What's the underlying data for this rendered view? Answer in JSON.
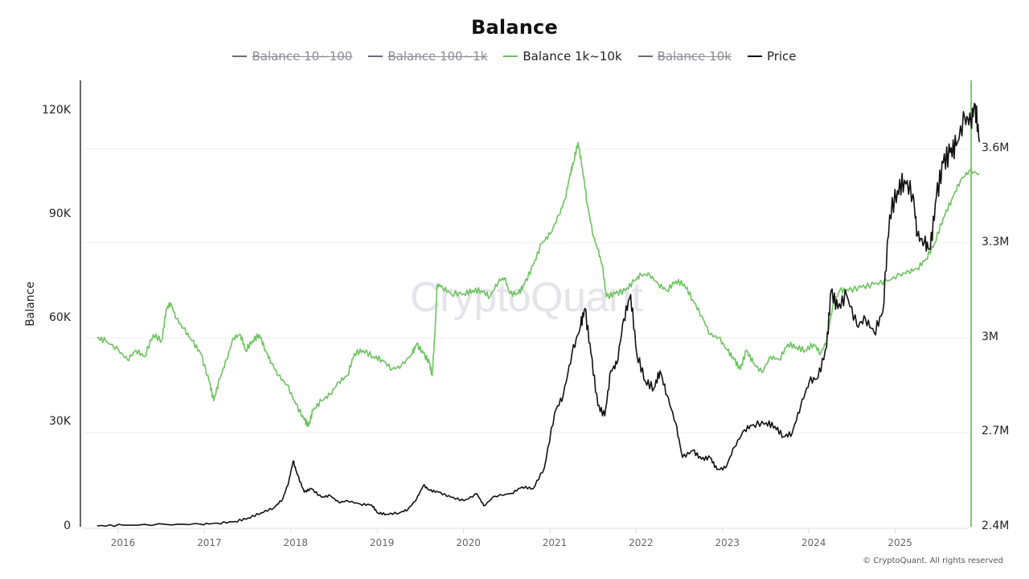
{
  "header": {
    "title": "Balance"
  },
  "legend": [
    {
      "label": "Balance 10~100",
      "color": "#6b6b78",
      "hidden": true
    },
    {
      "label": "Balance 100~1k",
      "color": "#6b6b78",
      "hidden": true
    },
    {
      "label": "Balance 1k~10k",
      "color": "#6cc35e",
      "hidden": false
    },
    {
      "label": "Balance 10k",
      "color": "#6b6b78",
      "hidden": true
    },
    {
      "label": "Price",
      "color": "#111111",
      "hidden": false
    }
  ],
  "axes": {
    "left_label": "Balance",
    "left_ticks": [
      "120K",
      "90K",
      "60K",
      "30K",
      "0"
    ],
    "right_ticks": [
      "3.6M",
      "3.3M",
      "3M",
      "2.7M",
      "2.4M"
    ],
    "x_ticks": [
      "2016",
      "2017",
      "2018",
      "2019",
      "2020",
      "2021",
      "2022",
      "2023",
      "2024",
      "2025"
    ]
  },
  "watermark": "CryptoQuant",
  "copyright": "© CryptoQuant. All rights reserved",
  "colors": {
    "balance_1k_10k": "#6cc35e",
    "price": "#111111",
    "right_axis": "#7dcf6e",
    "grid": "#eeeeee"
  },
  "chart_data": {
    "type": "line",
    "title": "Balance",
    "xlabel": "",
    "ylabel": "Balance",
    "x_range": [
      "2015-09",
      "2025-08"
    ],
    "legend_position": "top",
    "grid": true,
    "left_axis": {
      "series": "Price",
      "range": [
        0,
        130000
      ],
      "ticks": [
        0,
        30000,
        60000,
        90000,
        120000
      ]
    },
    "right_axis": {
      "series": "Balance 1k~10k",
      "range": [
        2400000,
        3620000
      ],
      "ticks": [
        2400000,
        2700000,
        3000000,
        3300000,
        3600000
      ]
    },
    "series": [
      {
        "name": "Balance 1k~10k",
        "axis": "right",
        "color": "#6cc35e",
        "points": [
          [
            2015.7,
            3000000
          ],
          [
            2015.8,
            2990000
          ],
          [
            2015.95,
            2960000
          ],
          [
            2016.05,
            2930000
          ],
          [
            2016.15,
            2960000
          ],
          [
            2016.25,
            2940000
          ],
          [
            2016.35,
            3010000
          ],
          [
            2016.45,
            2990000
          ],
          [
            2016.5,
            3090000
          ],
          [
            2016.55,
            3110000
          ],
          [
            2016.62,
            3060000
          ],
          [
            2016.7,
            3030000
          ],
          [
            2016.8,
            2990000
          ],
          [
            2016.9,
            2950000
          ],
          [
            2017.0,
            2860000
          ],
          [
            2017.05,
            2800000
          ],
          [
            2017.12,
            2870000
          ],
          [
            2017.2,
            2930000
          ],
          [
            2017.28,
            3000000
          ],
          [
            2017.36,
            3010000
          ],
          [
            2017.42,
            2960000
          ],
          [
            2017.5,
            2990000
          ],
          [
            2017.58,
            3010000
          ],
          [
            2017.65,
            2960000
          ],
          [
            2017.72,
            2920000
          ],
          [
            2017.8,
            2880000
          ],
          [
            2017.9,
            2850000
          ],
          [
            2018.0,
            2790000
          ],
          [
            2018.1,
            2740000
          ],
          [
            2018.15,
            2720000
          ],
          [
            2018.2,
            2770000
          ],
          [
            2018.3,
            2800000
          ],
          [
            2018.4,
            2820000
          ],
          [
            2018.5,
            2860000
          ],
          [
            2018.6,
            2880000
          ],
          [
            2018.68,
            2950000
          ],
          [
            2018.78,
            2960000
          ],
          [
            2018.9,
            2940000
          ],
          [
            2019.0,
            2930000
          ],
          [
            2019.12,
            2900000
          ],
          [
            2019.22,
            2910000
          ],
          [
            2019.35,
            2950000
          ],
          [
            2019.4,
            2980000
          ],
          [
            2019.48,
            2950000
          ],
          [
            2019.55,
            2920000
          ],
          [
            2019.58,
            2880000
          ],
          [
            2019.61,
            3000000
          ],
          [
            2019.64,
            3170000
          ],
          [
            2019.7,
            3160000
          ],
          [
            2019.8,
            3140000
          ],
          [
            2019.95,
            3140000
          ],
          [
            2020.05,
            3150000
          ],
          [
            2020.15,
            3150000
          ],
          [
            2020.25,
            3130000
          ],
          [
            2020.35,
            3180000
          ],
          [
            2020.42,
            3190000
          ],
          [
            2020.48,
            3140000
          ],
          [
            2020.58,
            3140000
          ],
          [
            2020.65,
            3170000
          ],
          [
            2020.75,
            3230000
          ],
          [
            2020.85,
            3300000
          ],
          [
            2020.95,
            3330000
          ],
          [
            2021.05,
            3390000
          ],
          [
            2021.12,
            3440000
          ],
          [
            2021.18,
            3520000
          ],
          [
            2021.22,
            3560000
          ],
          [
            2021.27,
            3620000
          ],
          [
            2021.32,
            3540000
          ],
          [
            2021.38,
            3420000
          ],
          [
            2021.45,
            3320000
          ],
          [
            2021.5,
            3280000
          ],
          [
            2021.55,
            3230000
          ],
          [
            2021.6,
            3130000
          ],
          [
            2021.7,
            3140000
          ],
          [
            2021.82,
            3150000
          ],
          [
            2021.92,
            3180000
          ],
          [
            2022.0,
            3200000
          ],
          [
            2022.1,
            3200000
          ],
          [
            2022.2,
            3170000
          ],
          [
            2022.3,
            3150000
          ],
          [
            2022.4,
            3180000
          ],
          [
            2022.5,
            3170000
          ],
          [
            2022.6,
            3120000
          ],
          [
            2022.7,
            3070000
          ],
          [
            2022.8,
            3010000
          ],
          [
            2022.9,
            3000000
          ],
          [
            2023.0,
            2960000
          ],
          [
            2023.08,
            2930000
          ],
          [
            2023.15,
            2900000
          ],
          [
            2023.22,
            2960000
          ],
          [
            2023.3,
            2920000
          ],
          [
            2023.4,
            2890000
          ],
          [
            2023.5,
            2940000
          ],
          [
            2023.6,
            2930000
          ],
          [
            2023.7,
            2980000
          ],
          [
            2023.8,
            2970000
          ],
          [
            2023.9,
            2960000
          ],
          [
            2024.0,
            2980000
          ],
          [
            2024.08,
            2950000
          ],
          [
            2024.15,
            2990000
          ],
          [
            2024.22,
            3100000
          ],
          [
            2024.3,
            3150000
          ],
          [
            2024.4,
            3150000
          ],
          [
            2024.55,
            3160000
          ],
          [
            2024.7,
            3170000
          ],
          [
            2024.85,
            3180000
          ],
          [
            2025.0,
            3200000
          ],
          [
            2025.1,
            3210000
          ],
          [
            2025.2,
            3220000
          ],
          [
            2025.3,
            3250000
          ],
          [
            2025.4,
            3300000
          ],
          [
            2025.5,
            3380000
          ],
          [
            2025.6,
            3440000
          ],
          [
            2025.7,
            3500000
          ],
          [
            2025.8,
            3530000
          ],
          [
            2025.92,
            3520000
          ]
        ]
      },
      {
        "name": "Price",
        "axis": "left",
        "color": "#111111",
        "points": [
          [
            2015.7,
            240
          ],
          [
            2016.0,
            430
          ],
          [
            2016.5,
            650
          ],
          [
            2016.9,
            750
          ],
          [
            2017.1,
            1000
          ],
          [
            2017.3,
            1500
          ],
          [
            2017.45,
            2500
          ],
          [
            2017.6,
            4000
          ],
          [
            2017.75,
            5500
          ],
          [
            2017.85,
            8000
          ],
          [
            2017.92,
            13000
          ],
          [
            2017.97,
            19000
          ],
          [
            2018.02,
            15000
          ],
          [
            2018.1,
            10000
          ],
          [
            2018.18,
            11000
          ],
          [
            2018.3,
            8500
          ],
          [
            2018.4,
            9000
          ],
          [
            2018.5,
            7000
          ],
          [
            2018.6,
            7500
          ],
          [
            2018.75,
            6500
          ],
          [
            2018.88,
            6300
          ],
          [
            2018.95,
            4000
          ],
          [
            2019.05,
            3600
          ],
          [
            2019.2,
            4000
          ],
          [
            2019.3,
            5000
          ],
          [
            2019.4,
            8000
          ],
          [
            2019.48,
            12000
          ],
          [
            2019.55,
            10500
          ],
          [
            2019.65,
            10000
          ],
          [
            2019.8,
            8500
          ],
          [
            2019.95,
            7500
          ],
          [
            2020.1,
            9500
          ],
          [
            2020.18,
            6000
          ],
          [
            2020.3,
            8800
          ],
          [
            2020.5,
            9600
          ],
          [
            2020.62,
            11500
          ],
          [
            2020.75,
            11000
          ],
          [
            2020.88,
            17000
          ],
          [
            2021.0,
            33000
          ],
          [
            2021.1,
            38000
          ],
          [
            2021.2,
            50000
          ],
          [
            2021.3,
            58000
          ],
          [
            2021.35,
            63000
          ],
          [
            2021.42,
            50000
          ],
          [
            2021.5,
            35000
          ],
          [
            2021.58,
            32000
          ],
          [
            2021.65,
            45000
          ],
          [
            2021.72,
            47000
          ],
          [
            2021.8,
            60000
          ],
          [
            2021.88,
            67000
          ],
          [
            2021.95,
            50000
          ],
          [
            2022.05,
            42000
          ],
          [
            2022.15,
            40000
          ],
          [
            2022.22,
            45000
          ],
          [
            2022.3,
            38000
          ],
          [
            2022.4,
            30000
          ],
          [
            2022.48,
            20000
          ],
          [
            2022.6,
            22000
          ],
          [
            2022.7,
            19500
          ],
          [
            2022.8,
            20000
          ],
          [
            2022.88,
            16500
          ],
          [
            2022.98,
            17000
          ],
          [
            2023.08,
            23000
          ],
          [
            2023.2,
            28000
          ],
          [
            2023.3,
            29500
          ],
          [
            2023.45,
            30000
          ],
          [
            2023.55,
            29000
          ],
          [
            2023.65,
            26000
          ],
          [
            2023.75,
            27000
          ],
          [
            2023.85,
            35000
          ],
          [
            2023.95,
            42000
          ],
          [
            2024.05,
            43000
          ],
          [
            2024.15,
            52000
          ],
          [
            2024.2,
            68000
          ],
          [
            2024.28,
            63000
          ],
          [
            2024.38,
            67000
          ],
          [
            2024.5,
            58000
          ],
          [
            2024.6,
            60000
          ],
          [
            2024.7,
            56000
          ],
          [
            2024.8,
            62000
          ],
          [
            2024.88,
            90000
          ],
          [
            2024.97,
            97000
          ],
          [
            2025.05,
            100000
          ],
          [
            2025.15,
            96000
          ],
          [
            2025.2,
            84000
          ],
          [
            2025.28,
            82000
          ],
          [
            2025.35,
            80000
          ],
          [
            2025.42,
            95000
          ],
          [
            2025.5,
            105000
          ],
          [
            2025.58,
            108000
          ],
          [
            2025.65,
            110000
          ],
          [
            2025.75,
            118000
          ],
          [
            2025.82,
            117000
          ],
          [
            2025.87,
            122000
          ],
          [
            2025.92,
            111000
          ]
        ]
      }
    ]
  }
}
